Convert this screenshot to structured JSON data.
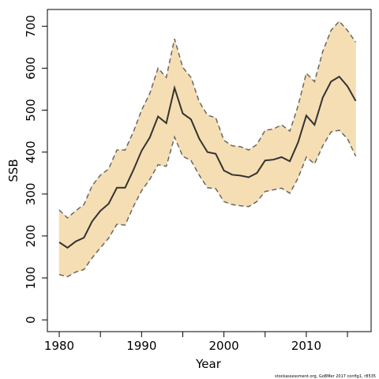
{
  "chart_data": {
    "type": "line",
    "x_label": "Year",
    "y_label": "SSB",
    "footnote": "stockassessment.org, GoBMer 2017 config1, r8535",
    "x": [
      1980,
      1981,
      1982,
      1983,
      1984,
      1985,
      1986,
      1987,
      1988,
      1989,
      1990,
      1991,
      1992,
      1993,
      1994,
      1995,
      1996,
      1997,
      1998,
      1999,
      2000,
      2001,
      2002,
      2003,
      2004,
      2005,
      2006,
      2007,
      2008,
      2009,
      2010,
      2011,
      2012,
      2013,
      2014,
      2015,
      2016
    ],
    "series": [
      {
        "color": "#333333",
        "values": [
          185,
          172,
          187,
          196,
          235,
          260,
          277,
          315,
          315,
          357,
          403,
          435,
          485,
          469,
          553,
          492,
          478,
          432,
          400,
          396,
          356,
          346,
          344,
          340,
          350,
          380,
          382,
          388,
          378,
          423,
          487,
          465,
          530,
          568,
          580,
          557,
          522
        ]
      }
    ],
    "band": {
      "color": "#f5deb3",
      "edge_color": "#666666",
      "upper": [
        262,
        243,
        260,
        275,
        320,
        345,
        360,
        405,
        405,
        448,
        500,
        540,
        600,
        578,
        670,
        602,
        578,
        520,
        488,
        482,
        428,
        415,
        413,
        405,
        418,
        452,
        455,
        465,
        450,
        510,
        588,
        568,
        640,
        690,
        712,
        690,
        662
      ],
      "lower": [
        108,
        103,
        114,
        120,
        148,
        172,
        195,
        228,
        226,
        270,
        308,
        335,
        370,
        366,
        436,
        390,
        380,
        345,
        315,
        313,
        282,
        275,
        272,
        270,
        282,
        306,
        310,
        314,
        302,
        338,
        388,
        372,
        415,
        448,
        452,
        432,
        390
      ]
    },
    "xlim": [
      1978.56,
      2017.87
    ],
    "ylim": [
      -28,
      740
    ],
    "xticks": [
      1980,
      1990,
      2000,
      2010
    ],
    "xminorticks": [
      1985,
      1995,
      2005,
      2015
    ],
    "yticks": [
      0,
      100,
      200,
      300,
      400,
      500,
      600,
      700
    ]
  }
}
